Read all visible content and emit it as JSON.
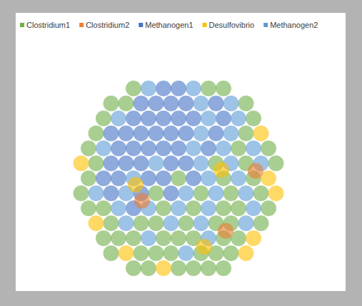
{
  "chart_data": {
    "type": "scatter",
    "tick_labels": false,
    "xlim": [
      0,
      100
    ],
    "ylim": [
      0,
      100
    ],
    "series": [
      {
        "name": "Clostridium1",
        "color": "#70ad47",
        "x": [
          29,
          64,
          71,
          18.5,
          25.5,
          81.5,
          15,
          85,
          11.5,
          81.5,
          8,
          78,
          92,
          11.5,
          67.5,
          81.5,
          95.5,
          8,
          50,
          71,
          85,
          4.5,
          39.5,
          60.5,
          74.5,
          88.5,
          8,
          15,
          43,
          57,
          71,
          78,
          92,
          18.5,
          32.5,
          39.5,
          53.5,
          67.5,
          74.5,
          88.5,
          15,
          22,
          29,
          43,
          50,
          57,
          71,
          78,
          18.5,
          32.5,
          39.5,
          46.5,
          60.5,
          67.5,
          74.5,
          29,
          36,
          50,
          57,
          64,
          71
        ],
        "y": [
          92,
          92,
          92,
          85,
          85,
          85,
          78,
          78,
          71,
          71,
          64,
          64,
          64,
          57,
          57,
          57,
          57,
          50,
          50,
          50,
          50,
          43,
          43,
          43,
          43,
          43,
          36,
          36,
          36,
          36,
          36,
          36,
          36,
          29,
          29,
          29,
          29,
          29,
          29,
          29,
          22,
          22,
          22,
          22,
          22,
          22,
          22,
          22,
          15,
          15,
          15,
          15,
          15,
          15,
          15,
          8,
          8,
          8,
          8,
          8,
          8
        ]
      },
      {
        "name": "Clostridium2",
        "color": "#ed7d31",
        "x": [
          33,
          72,
          86
        ],
        "y": [
          39.5,
          25.5,
          53.5
        ]
      },
      {
        "name": "Methanogen1",
        "color": "#4472c4",
        "x": [
          43,
          50,
          32.5,
          39.5,
          46.5,
          53.5,
          67.5,
          29,
          36,
          43,
          50,
          57,
          71,
          18.5,
          25.5,
          32.5,
          39.5,
          46.5,
          53.5,
          67.5,
          22,
          29,
          36,
          43,
          50,
          64,
          18.5,
          25.5,
          32.5,
          46.5,
          53.5,
          15,
          22,
          36,
          43,
          57,
          18.5,
          32.5,
          46.5,
          29
        ],
        "y": [
          92,
          92,
          85,
          85,
          85,
          85,
          85,
          78,
          78,
          78,
          78,
          78,
          78,
          71,
          71,
          71,
          71,
          71,
          71,
          71,
          64,
          64,
          64,
          64,
          64,
          64,
          57,
          57,
          57,
          57,
          57,
          50,
          50,
          50,
          50,
          50,
          43,
          43,
          43,
          36
        ]
      },
      {
        "name": "Desulfovibrio",
        "color": "#ffc000",
        "x": [
          88.5,
          4.5,
          92,
          95.5,
          11.5,
          85,
          25.5,
          81.5,
          43,
          62,
          30,
          70
        ],
        "y": [
          71,
          57,
          50,
          43,
          29,
          22,
          15,
          15,
          8,
          18,
          47,
          54
        ]
      },
      {
        "name": "Methanogen2",
        "color": "#5b9bd5",
        "x": [
          36,
          57,
          60.5,
          74.5,
          22,
          64,
          78,
          60.5,
          74.5,
          15,
          57,
          71,
          85,
          39.5,
          60.5,
          74.5,
          88.5,
          29,
          64,
          78,
          11.5,
          25.5,
          53.5,
          67.5,
          81.5,
          22,
          36,
          50,
          64,
          85,
          25.5,
          46.5,
          60.5,
          81.5,
          36,
          64,
          53.5
        ],
        "y": [
          92,
          92,
          85,
          85,
          78,
          78,
          78,
          71,
          71,
          64,
          64,
          64,
          64,
          57,
          57,
          57,
          57,
          50,
          50,
          50,
          43,
          43,
          43,
          43,
          43,
          36,
          36,
          36,
          36,
          36,
          29,
          29,
          29,
          29,
          22,
          22,
          15
        ]
      }
    ]
  }
}
